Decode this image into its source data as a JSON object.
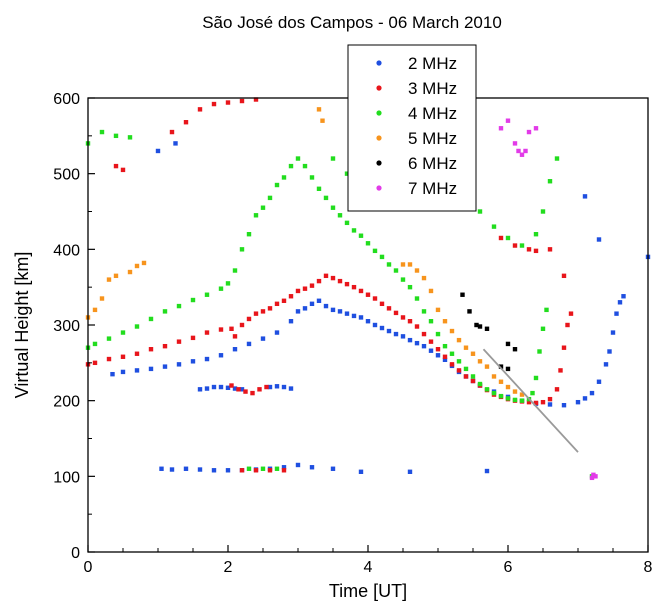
{
  "chart_data": {
    "type": "scatter",
    "title": "São José dos Campos - 06 March 2010",
    "xlabel": "Time [UT]",
    "ylabel": "Virtual Height [km]",
    "xlim": [
      0,
      8
    ],
    "ylim": [
      0,
      600
    ],
    "x_ticks": [
      "0",
      "2",
      "4",
      "6",
      "8"
    ],
    "y_ticks": [
      "0",
      "100",
      "200",
      "300",
      "400",
      "500",
      "600"
    ],
    "grid": false,
    "legend_position": "top-right",
    "series": [
      {
        "name": "2 MHz",
        "color": "#1f4fe0",
        "points": [
          [
            0.35,
            235
          ],
          [
            0.5,
            238
          ],
          [
            0.7,
            240
          ],
          [
            0.9,
            242
          ],
          [
            1.1,
            245
          ],
          [
            1.3,
            248
          ],
          [
            1.5,
            252
          ],
          [
            1.7,
            255
          ],
          [
            1.9,
            260
          ],
          [
            2.1,
            268
          ],
          [
            2.3,
            275
          ],
          [
            2.5,
            282
          ],
          [
            2.7,
            290
          ],
          [
            2.9,
            305
          ],
          [
            3.0,
            318
          ],
          [
            3.1,
            322
          ],
          [
            3.2,
            328
          ],
          [
            3.3,
            332
          ],
          [
            3.4,
            325
          ],
          [
            3.5,
            320
          ],
          [
            3.6,
            318
          ],
          [
            3.7,
            315
          ],
          [
            3.8,
            312
          ],
          [
            3.9,
            310
          ],
          [
            4.0,
            305
          ],
          [
            4.1,
            300
          ],
          [
            4.2,
            296
          ],
          [
            4.3,
            292
          ],
          [
            4.4,
            288
          ],
          [
            4.5,
            285
          ],
          [
            4.6,
            280
          ],
          [
            4.7,
            276
          ],
          [
            4.8,
            272
          ],
          [
            4.9,
            266
          ],
          [
            5.0,
            260
          ],
          [
            5.1,
            254
          ],
          [
            5.2,
            246
          ],
          [
            5.3,
            238
          ],
          [
            5.4,
            232
          ],
          [
            5.5,
            226
          ],
          [
            5.6,
            220
          ],
          [
            5.8,
            212
          ],
          [
            6.0,
            205
          ],
          [
            6.2,
            200
          ],
          [
            6.4,
            196
          ],
          [
            6.6,
            195
          ],
          [
            6.8,
            194
          ],
          [
            7.0,
            198
          ],
          [
            7.1,
            203
          ],
          [
            7.2,
            210
          ],
          [
            7.3,
            225
          ],
          [
            7.4,
            248
          ],
          [
            7.45,
            265
          ],
          [
            7.5,
            290
          ],
          [
            7.55,
            315
          ],
          [
            7.6,
            330
          ],
          [
            7.65,
            338
          ],
          [
            1.6,
            215
          ],
          [
            1.7,
            216
          ],
          [
            1.8,
            218
          ],
          [
            1.9,
            218
          ],
          [
            2.0,
            217
          ],
          [
            2.1,
            216
          ],
          [
            2.2,
            215
          ],
          [
            2.6,
            218
          ],
          [
            2.7,
            219
          ],
          [
            2.8,
            218
          ],
          [
            2.9,
            216
          ],
          [
            1.05,
            110
          ],
          [
            1.2,
            109
          ],
          [
            1.4,
            110
          ],
          [
            1.6,
            109
          ],
          [
            1.8,
            108
          ],
          [
            2.0,
            108
          ],
          [
            2.2,
            108
          ],
          [
            2.4,
            109
          ],
          [
            2.6,
            110
          ],
          [
            2.8,
            112
          ],
          [
            3.0,
            115
          ],
          [
            3.2,
            112
          ],
          [
            3.5,
            110
          ],
          [
            3.9,
            106
          ],
          [
            4.6,
            106
          ],
          [
            5.7,
            107
          ],
          [
            1.0,
            530
          ],
          [
            1.25,
            540
          ],
          [
            7.1,
            470
          ],
          [
            7.3,
            413
          ],
          [
            8.0,
            390
          ]
        ]
      },
      {
        "name": "3 MHz",
        "color": "#e8151b",
        "points": [
          [
            0.0,
            248
          ],
          [
            0.1,
            250
          ],
          [
            0.3,
            255
          ],
          [
            0.5,
            258
          ],
          [
            0.7,
            262
          ],
          [
            0.9,
            268
          ],
          [
            1.1,
            272
          ],
          [
            1.3,
            278
          ],
          [
            1.5,
            283
          ],
          [
            1.7,
            290
          ],
          [
            1.9,
            294
          ],
          [
            2.05,
            295
          ],
          [
            2.1,
            285
          ],
          [
            2.2,
            300
          ],
          [
            2.3,
            308
          ],
          [
            2.4,
            315
          ],
          [
            2.5,
            318
          ],
          [
            2.6,
            322
          ],
          [
            2.7,
            328
          ],
          [
            2.8,
            332
          ],
          [
            2.9,
            338
          ],
          [
            3.0,
            345
          ],
          [
            3.1,
            348
          ],
          [
            3.2,
            352
          ],
          [
            3.3,
            358
          ],
          [
            3.4,
            365
          ],
          [
            3.5,
            362
          ],
          [
            3.6,
            358
          ],
          [
            3.7,
            354
          ],
          [
            3.8,
            350
          ],
          [
            3.9,
            345
          ],
          [
            4.0,
            340
          ],
          [
            4.1,
            335
          ],
          [
            4.2,
            328
          ],
          [
            4.3,
            322
          ],
          [
            4.4,
            316
          ],
          [
            4.5,
            310
          ],
          [
            4.6,
            305
          ],
          [
            4.7,
            298
          ],
          [
            4.8,
            288
          ],
          [
            4.9,
            278
          ],
          [
            5.0,
            268
          ],
          [
            5.1,
            258
          ],
          [
            5.2,
            248
          ],
          [
            5.3,
            240
          ],
          [
            5.4,
            232
          ],
          [
            5.5,
            226
          ],
          [
            5.6,
            220
          ],
          [
            5.7,
            214
          ],
          [
            5.8,
            208
          ],
          [
            5.9,
            205
          ],
          [
            6.0,
            202
          ],
          [
            6.1,
            200
          ],
          [
            6.2,
            199
          ],
          [
            6.3,
            198
          ],
          [
            6.4,
            197
          ],
          [
            6.5,
            198
          ],
          [
            6.6,
            202
          ],
          [
            6.7,
            215
          ],
          [
            6.75,
            240
          ],
          [
            6.8,
            270
          ],
          [
            6.85,
            300
          ],
          [
            6.9,
            315
          ],
          [
            5.9,
            415
          ],
          [
            6.1,
            405
          ],
          [
            6.3,
            400
          ],
          [
            6.4,
            398
          ],
          [
            6.6,
            400
          ],
          [
            6.8,
            365
          ],
          [
            0.4,
            510
          ],
          [
            0.5,
            505
          ],
          [
            1.2,
            555
          ],
          [
            1.4,
            568
          ],
          [
            1.6,
            585
          ],
          [
            1.8,
            592
          ],
          [
            2.0,
            594
          ],
          [
            2.2,
            596
          ],
          [
            2.4,
            598
          ],
          [
            2.05,
            220
          ],
          [
            2.15,
            215
          ],
          [
            2.25,
            212
          ],
          [
            2.35,
            210
          ],
          [
            2.45,
            215
          ],
          [
            2.55,
            218
          ],
          [
            2.2,
            108
          ],
          [
            2.4,
            108
          ],
          [
            2.6,
            108
          ],
          [
            2.8,
            108
          ]
        ]
      },
      {
        "name": "4 MHz",
        "color": "#22dd1e",
        "points": [
          [
            0.0,
            270
          ],
          [
            0.1,
            275
          ],
          [
            0.3,
            282
          ],
          [
            0.5,
            290
          ],
          [
            0.7,
            298
          ],
          [
            0.9,
            308
          ],
          [
            1.1,
            318
          ],
          [
            1.3,
            325
          ],
          [
            1.5,
            333
          ],
          [
            1.7,
            340
          ],
          [
            1.9,
            348
          ],
          [
            2.0,
            355
          ],
          [
            2.1,
            372
          ],
          [
            2.2,
            400
          ],
          [
            2.3,
            420
          ],
          [
            2.4,
            445
          ],
          [
            2.5,
            455
          ],
          [
            2.6,
            468
          ],
          [
            2.7,
            485
          ],
          [
            2.8,
            495
          ],
          [
            2.9,
            510
          ],
          [
            3.0,
            520
          ],
          [
            3.1,
            510
          ],
          [
            3.2,
            495
          ],
          [
            3.3,
            480
          ],
          [
            3.4,
            468
          ],
          [
            3.5,
            455
          ],
          [
            3.6,
            445
          ],
          [
            3.7,
            435
          ],
          [
            3.8,
            425
          ],
          [
            3.9,
            418
          ],
          [
            4.0,
            408
          ],
          [
            4.1,
            398
          ],
          [
            4.2,
            390
          ],
          [
            4.3,
            380
          ],
          [
            4.4,
            372
          ],
          [
            4.5,
            360
          ],
          [
            4.6,
            350
          ],
          [
            4.7,
            335
          ],
          [
            4.8,
            318
          ],
          [
            4.9,
            305
          ],
          [
            5.0,
            288
          ],
          [
            5.1,
            272
          ],
          [
            5.2,
            262
          ],
          [
            5.3,
            252
          ],
          [
            5.4,
            242
          ],
          [
            5.5,
            232
          ],
          [
            5.6,
            222
          ],
          [
            5.7,
            215
          ],
          [
            5.8,
            210
          ],
          [
            5.9,
            206
          ],
          [
            6.0,
            203
          ],
          [
            6.1,
            201
          ],
          [
            6.2,
            200
          ],
          [
            6.3,
            202
          ],
          [
            6.35,
            210
          ],
          [
            6.4,
            230
          ],
          [
            6.45,
            265
          ],
          [
            6.5,
            295
          ],
          [
            6.55,
            320
          ],
          [
            5.4,
            465
          ],
          [
            5.6,
            450
          ],
          [
            5.8,
            430
          ],
          [
            6.0,
            415
          ],
          [
            6.2,
            405
          ],
          [
            6.4,
            420
          ],
          [
            6.5,
            450
          ],
          [
            6.6,
            490
          ],
          [
            6.7,
            520
          ],
          [
            0.0,
            540
          ],
          [
            0.2,
            555
          ],
          [
            0.4,
            550
          ],
          [
            0.6,
            548
          ],
          [
            3.5,
            520
          ],
          [
            3.7,
            500
          ],
          [
            2.3,
            110
          ],
          [
            2.5,
            110
          ],
          [
            2.7,
            110
          ],
          [
            7.2,
            100
          ]
        ]
      },
      {
        "name": "5 MHz",
        "color": "#f7941d",
        "points": [
          [
            0.0,
            310
          ],
          [
            0.1,
            320
          ],
          [
            0.2,
            335
          ],
          [
            0.3,
            360
          ],
          [
            0.4,
            365
          ],
          [
            0.6,
            370
          ],
          [
            0.7,
            378
          ],
          [
            0.8,
            382
          ],
          [
            3.3,
            585
          ],
          [
            3.35,
            570
          ],
          [
            4.6,
            380
          ],
          [
            4.7,
            372
          ],
          [
            4.8,
            362
          ],
          [
            4.9,
            345
          ],
          [
            5.0,
            320
          ],
          [
            5.1,
            305
          ],
          [
            5.2,
            292
          ],
          [
            5.3,
            280
          ],
          [
            5.4,
            270
          ],
          [
            5.5,
            262
          ],
          [
            5.6,
            252
          ],
          [
            5.7,
            245
          ],
          [
            5.8,
            232
          ],
          [
            5.9,
            225
          ],
          [
            6.0,
            218
          ],
          [
            6.1,
            212
          ],
          [
            6.2,
            208
          ],
          [
            4.5,
            380
          ]
        ]
      },
      {
        "name": "6 MHz",
        "color": "#000000",
        "points": [
          [
            5.35,
            340
          ],
          [
            5.45,
            318
          ],
          [
            5.55,
            300
          ],
          [
            5.6,
            298
          ],
          [
            5.7,
            295
          ],
          [
            6.0,
            275
          ],
          [
            6.1,
            268
          ],
          [
            5.9,
            245
          ],
          [
            6.0,
            242
          ]
        ]
      },
      {
        "name": "7 MHz",
        "color": "#e23be8",
        "points": [
          [
            5.9,
            560
          ],
          [
            6.0,
            570
          ],
          [
            6.1,
            540
          ],
          [
            6.15,
            530
          ],
          [
            6.2,
            525
          ],
          [
            6.25,
            530
          ],
          [
            6.3,
            555
          ],
          [
            6.4,
            560
          ],
          [
            7.2,
            98
          ],
          [
            7.22,
            102
          ],
          [
            7.25,
            100
          ]
        ]
      }
    ],
    "annotation_line": {
      "x": [
        5.65,
        7.0
      ],
      "y": [
        268,
        132
      ],
      "color": "#9a9a9a"
    }
  }
}
